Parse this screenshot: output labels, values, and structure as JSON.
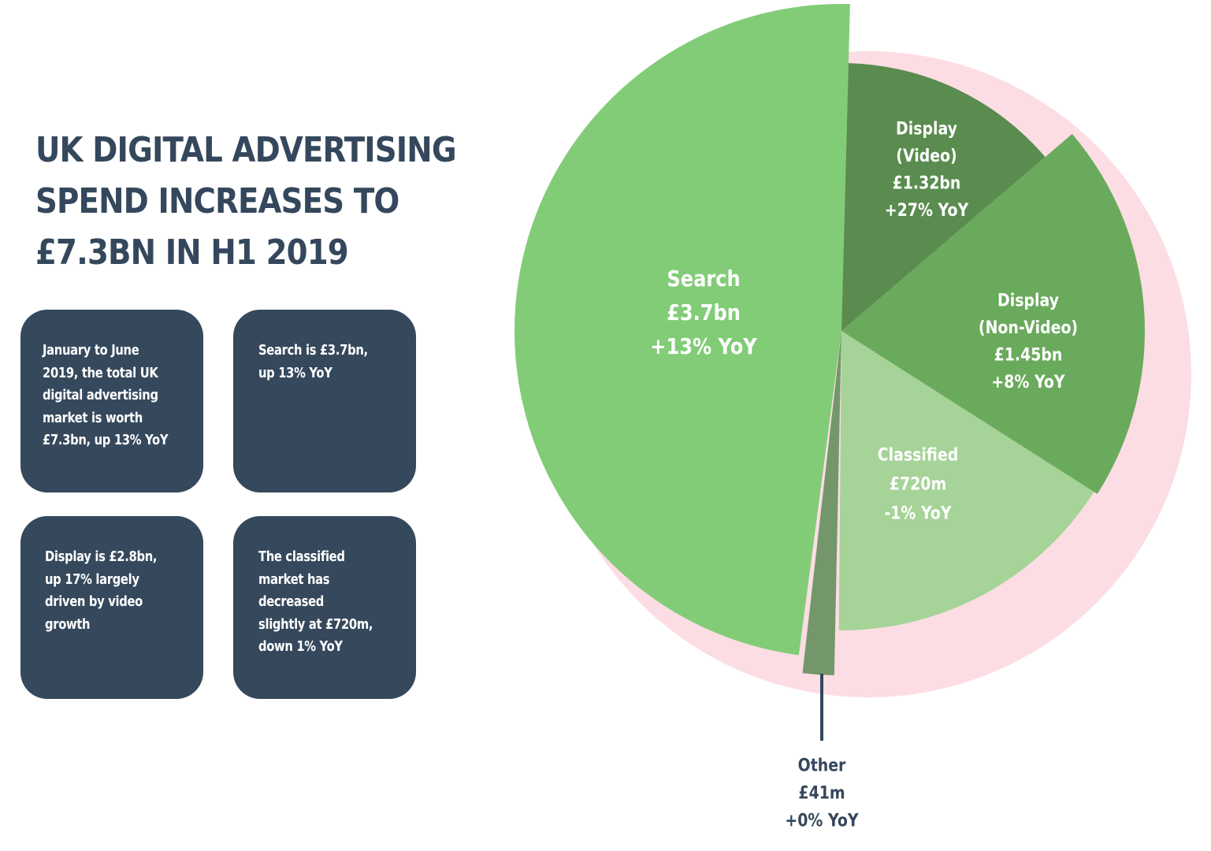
{
  "title_lines": [
    "UK DIGITAL ADVERTISING",
    "SPEND INCREASES TO",
    "£7.3BN IN H1 2019"
  ],
  "cards": [
    {
      "lines": [
        "January to June",
        "2019, the total UK",
        "digital advertising",
        "market is worth",
        "£7.3bn, up 13% YoY"
      ]
    },
    {
      "lines": [
        "Search is £3.7bn,",
        "up 13% YoY"
      ]
    },
    {
      "lines": [
        "Display is £2.8bn,",
        "up 17% largely",
        "driven by video",
        "growth"
      ]
    },
    {
      "lines": [
        "The classified",
        "market has",
        "decreased",
        "slightly at £720m,",
        "down 1% YoY"
      ]
    }
  ],
  "chart_data": {
    "type": "pie",
    "slices": [
      {
        "name": "Search",
        "value": 3.7,
        "unit": "bn",
        "yoy": 13,
        "label_lines": [
          "Search",
          "£3.7bn",
          "+13% YoY"
        ],
        "color": "#82cc78"
      },
      {
        "name": "Display (Video)",
        "value": 1.32,
        "unit": "bn",
        "yoy": 27,
        "label_lines": [
          "Display",
          "(Video)",
          "£1.32bn",
          "+27% YoY"
        ],
        "color": "#5a8c4f"
      },
      {
        "name": "Display (Non-Video)",
        "value": 1.45,
        "unit": "bn",
        "yoy": 8,
        "label_lines": [
          "Display",
          "(Non-Video)",
          "£1.45bn",
          "+8% YoY"
        ],
        "color": "#6aaa5c"
      },
      {
        "name": "Classified",
        "value": 0.72,
        "unit": "bn",
        "yoy": -1,
        "label_lines": [
          "Classified",
          "£720m",
          "-1% YoY"
        ],
        "color": "#a6d398"
      },
      {
        "name": "Other",
        "value": 0.041,
        "unit": "bn",
        "yoy": 0,
        "label_lines": [
          "Other",
          "£41m",
          "+0% YoY"
        ],
        "color": "#73976a"
      }
    ],
    "slice_yoy_display": [
      "+13% YoY",
      "+27% YoY",
      "+8% YoY",
      "-1% YoY",
      "+0% YoY"
    ],
    "colors": {
      "background_ring": "#fcdde3",
      "inside_label": "#ffffff",
      "outside_label": "#34475c",
      "leader_line": "#34475c"
    }
  },
  "colors": {
    "title": "#34475c",
    "card_background": "#35485c",
    "card_text": "#ffffff"
  }
}
